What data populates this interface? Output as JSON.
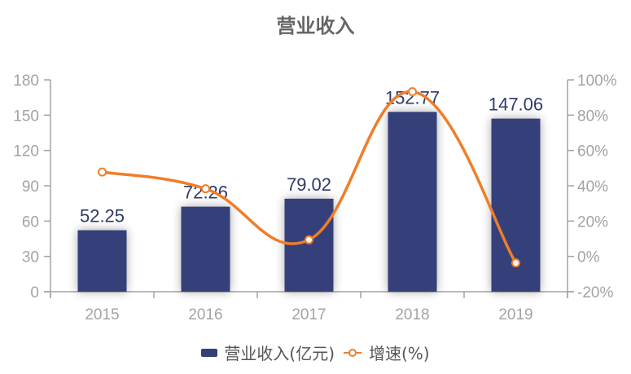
{
  "title": "营业收入",
  "legend": {
    "bar_label": "营业收入(亿元)",
    "line_label": "增速(%)"
  },
  "colors": {
    "bar": "#35407a",
    "line": "#f07d2a",
    "axis": "#a3a3a3",
    "label": "#2f3a6b"
  },
  "chart_data": {
    "type": "bar",
    "title": "营业收入",
    "categories": [
      "2015",
      "2016",
      "2017",
      "2018",
      "2019"
    ],
    "series": [
      {
        "name": "营业收入(亿元)",
        "type": "bar",
        "axis": "left",
        "values": [
          52.25,
          72.26,
          79.02,
          152.77,
          147.06
        ]
      },
      {
        "name": "增速(%)",
        "type": "line",
        "axis": "right",
        "smooth": true,
        "values": [
          47.8,
          38.3,
          9.4,
          93.3,
          -3.7
        ]
      }
    ],
    "left_axis": {
      "ylim": [
        0,
        180
      ],
      "ticks": [
        "0",
        "30",
        "60",
        "90",
        "120",
        "150",
        "180"
      ]
    },
    "right_axis": {
      "ylim": [
        -20,
        100
      ],
      "ticks": [
        "-20%",
        "0%",
        "20%",
        "40%",
        "60%",
        "80%",
        "100%"
      ]
    },
    "xlabel": "",
    "ylabel": "",
    "grid": false,
    "legend_position": "bottom"
  }
}
